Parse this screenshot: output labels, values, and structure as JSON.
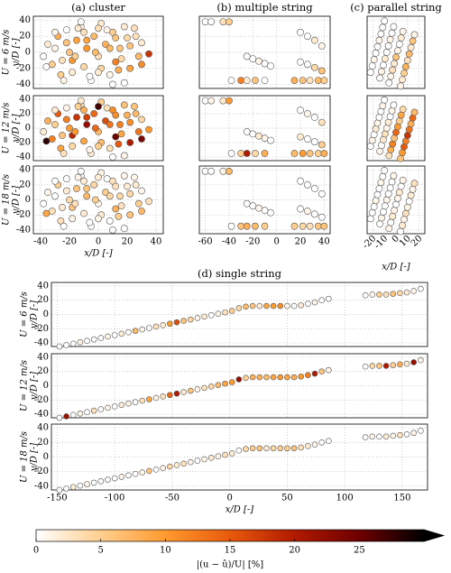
{
  "chart_data": [
    {
      "type": "scatter",
      "title": "(a) cluster",
      "xlabel": "x/D [-]",
      "ylabel": "y/D [-]",
      "xlim": [
        -45,
        45
      ],
      "xticks": [
        -40,
        -20,
        0,
        20,
        40
      ],
      "ylim": [
        -45,
        45
      ],
      "yticks": [
        -40,
        -20,
        0,
        20,
        40
      ],
      "grid": true,
      "x": [
        -38,
        -35,
        -32,
        -30,
        -28,
        -25,
        -22,
        -20,
        -18,
        -15,
        -12,
        -10,
        -8,
        -5,
        -3,
        0,
        2,
        5,
        8,
        10,
        12,
        15,
        18,
        20,
        22,
        25,
        28,
        30,
        35,
        -36,
        -30,
        -26,
        -22,
        -18,
        -14,
        -10,
        -6,
        -2,
        2,
        6,
        10,
        14,
        18,
        22,
        26,
        30,
        -24,
        -16,
        -8,
        0,
        8,
        16,
        -12,
        0,
        12
      ],
      "y": [
        -5,
        10,
        -15,
        5,
        20,
        -10,
        28,
        0,
        -25,
        15,
        32,
        -18,
        5,
        -35,
        20,
        -5,
        36,
        10,
        -28,
        25,
        -12,
        5,
        -38,
        18,
        -20,
        30,
        -5,
        12,
        -2,
        -18,
        25,
        -28,
        12,
        -10,
        30,
        25,
        -30,
        0,
        -20,
        28,
        -40,
        -22,
        32,
        8,
        20,
        -15,
        -35,
        -5,
        15,
        -25,
        5,
        -8,
        38,
        30,
        18
      ],
      "series": [
        {
          "name": "U = 6 m/s",
          "values": [
            0,
            2,
            5,
            1,
            8,
            3,
            0,
            6,
            2,
            9,
            1,
            4,
            10,
            0,
            7,
            3,
            2,
            8,
            1,
            5,
            12,
            6,
            0,
            4,
            9,
            3,
            7,
            2,
            18,
            0,
            1,
            5,
            6,
            10,
            2,
            3,
            0,
            7,
            4,
            1,
            0,
            8,
            2,
            6,
            3,
            11,
            1,
            5,
            9,
            2,
            7,
            4,
            0,
            3,
            6
          ]
        },
        {
          "name": "U = 12 m/s",
          "values": [
            2,
            8,
            12,
            5,
            15,
            6,
            1,
            10,
            4,
            18,
            3,
            9,
            22,
            2,
            14,
            7,
            5,
            16,
            3,
            11,
            25,
            12,
            1,
            8,
            20,
            6,
            13,
            4,
            10,
            28,
            2,
            9,
            12,
            19,
            5,
            8,
            1,
            14,
            7,
            3,
            0,
            15,
            6,
            11,
            7,
            24,
            3,
            10,
            17,
            5,
            13,
            9,
            2,
            27,
            11
          ]
        },
        {
          "name": "U = 18 m/s",
          "values": [
            0,
            1,
            3,
            0,
            5,
            2,
            0,
            4,
            1,
            6,
            0,
            2,
            7,
            0,
            4,
            1,
            1,
            5,
            0,
            3,
            8,
            4,
            0,
            2,
            6,
            1,
            5,
            1,
            3,
            9,
            0,
            3,
            2,
            6,
            1,
            2,
            0,
            5,
            2,
            0,
            0,
            5,
            1,
            4,
            2,
            7,
            0,
            3,
            6,
            1,
            4,
            3,
            0,
            2,
            3
          ]
        }
      ]
    },
    {
      "type": "scatter",
      "title": "(b) multiple string",
      "xlim": [
        -65,
        45
      ],
      "xticks": [
        -60,
        -40,
        -20,
        0,
        20,
        40
      ],
      "ylim": [
        -45,
        45
      ],
      "yticks": [
        -40,
        -20,
        0,
        20,
        40
      ],
      "grid": true,
      "x": [
        -60,
        -55,
        -45,
        -40,
        -25,
        -20,
        -15,
        -10,
        -5,
        -38,
        -30,
        -25,
        -18,
        -10,
        20,
        26,
        32,
        38,
        20,
        26,
        32,
        38,
        15,
        22,
        28,
        35,
        40
      ],
      "y": [
        38,
        38,
        38,
        38,
        -5,
        -8,
        -11,
        -14,
        -17,
        -35,
        -35,
        -35,
        -35,
        -35,
        25,
        20,
        15,
        8,
        -12,
        -15,
        -19,
        -23,
        -35,
        -35,
        -35,
        -35,
        -35
      ],
      "series": [
        {
          "name": "U = 6 m/s",
          "values": [
            0,
            0,
            3,
            5,
            0,
            0,
            1,
            0,
            0,
            0,
            12,
            2,
            6,
            0,
            0,
            0,
            2,
            1,
            0,
            0,
            4,
            6,
            8,
            6,
            3,
            7,
            5
          ]
        },
        {
          "name": "U = 12 m/s",
          "values": [
            0,
            1,
            2,
            10,
            0,
            0,
            2,
            1,
            0,
            0,
            5,
            20,
            4,
            8,
            0,
            1,
            0,
            3,
            2,
            0,
            0,
            5,
            7,
            10,
            6,
            5,
            8
          ]
        },
        {
          "name": "U = 18 m/s",
          "values": [
            0,
            0,
            1,
            7,
            0,
            0,
            1,
            0,
            0,
            0,
            6,
            8,
            7,
            5,
            0,
            0,
            0,
            0,
            0,
            1,
            0,
            0,
            5,
            4,
            3,
            6,
            6
          ]
        }
      ]
    },
    {
      "type": "scatter",
      "title": "(c) parallel string",
      "xlabel": "x/D [-]",
      "xtick_rotation": -45,
      "xlim": [
        -25,
        25
      ],
      "xticks": [
        -20,
        -10,
        0,
        10,
        20
      ],
      "ylim": [
        -45,
        45
      ],
      "yticks": [
        -40,
        -20,
        0,
        20,
        40
      ],
      "grid": true,
      "x": [
        -22,
        -20.5,
        -19,
        -17.5,
        -16,
        -14.5,
        -13,
        -11.5,
        -10,
        -14,
        -12.5,
        -11,
        -9.5,
        -8,
        -6.5,
        -5,
        -3.5,
        -2,
        -6,
        -4.5,
        -3,
        -1.5,
        0,
        1.5,
        3,
        4.5,
        6,
        4,
        5.5,
        7,
        8.5,
        10,
        11.5,
        13,
        14.5,
        16
      ],
      "y": [
        -25,
        -17,
        -9,
        -1,
        7,
        15,
        23,
        31,
        39,
        -32,
        -24,
        -16,
        -8,
        0,
        8,
        16,
        24,
        32,
        -38,
        -30,
        -22,
        -14,
        -6,
        2,
        10,
        18,
        26,
        -42,
        -34,
        -26,
        -18,
        -10,
        -2,
        6,
        14,
        22
      ],
      "series": [
        {
          "name": "U = 6 m/s",
          "values": [
            0,
            0,
            1,
            0,
            0,
            1,
            0,
            0,
            0,
            0,
            1,
            0,
            2,
            0,
            0,
            1,
            0,
            0,
            0,
            1,
            3,
            2,
            6,
            1,
            0,
            2,
            1,
            1,
            2,
            5,
            8,
            3,
            7,
            2,
            6,
            1
          ]
        },
        {
          "name": "U = 12 m/s",
          "values": [
            0,
            1,
            0,
            2,
            1,
            0,
            0,
            1,
            0,
            1,
            0,
            2,
            3,
            1,
            2,
            0,
            1,
            0,
            3,
            8,
            12,
            6,
            14,
            10,
            5,
            9,
            4,
            6,
            10,
            15,
            12,
            18,
            13,
            8,
            14,
            7
          ]
        },
        {
          "name": "U = 18 m/s",
          "values": [
            0,
            0,
            0,
            1,
            0,
            0,
            1,
            0,
            0,
            0,
            1,
            0,
            0,
            1,
            0,
            0,
            0,
            1,
            1,
            0,
            2,
            1,
            0,
            1,
            2,
            0,
            1,
            0,
            2,
            1,
            3,
            1,
            0,
            2,
            1,
            3
          ]
        }
      ]
    },
    {
      "type": "scatter",
      "title": "(d) single string",
      "xlabel": "x/D [-]",
      "ylabel": "y/D [-]",
      "xlim": [
        -155,
        172
      ],
      "xticks": [
        -150,
        -100,
        -50,
        0,
        50,
        100,
        150
      ],
      "ylim": [
        -45,
        45
      ],
      "yticks": [
        -40,
        -20,
        0,
        20,
        40
      ],
      "grid": true,
      "x": [
        -148,
        -142,
        -136,
        -130,
        -124,
        -118,
        -112,
        -106,
        -100,
        -94,
        -88,
        -82,
        -76,
        -70,
        -64,
        -58,
        -52,
        -46,
        -40,
        -34,
        -28,
        -22,
        -16,
        -10,
        -4,
        2,
        8,
        14,
        20,
        26,
        32,
        38,
        44,
        50,
        56,
        62,
        68,
        74,
        80,
        86,
        118,
        124,
        130,
        136,
        142,
        148,
        154,
        160,
        166
      ],
      "y": [
        -45,
        -43,
        -41,
        -39,
        -37,
        -35,
        -33,
        -31,
        -29,
        -27,
        -25,
        -23,
        -21,
        -19,
        -17,
        -15,
        -13,
        -11,
        -9,
        -7,
        -5,
        -3,
        -1,
        1,
        3,
        5,
        9,
        11,
        12,
        12,
        12,
        12,
        12,
        12,
        12,
        13,
        15,
        17,
        20,
        22,
        27,
        28,
        28,
        28,
        29,
        30,
        31,
        33,
        36
      ],
      "series": [
        {
          "name": "U = 6 m/s",
          "values": [
            0,
            0,
            0,
            1,
            0,
            0,
            0,
            1,
            0,
            2,
            0,
            7,
            1,
            0,
            3,
            2,
            10,
            16,
            6,
            4,
            1,
            2,
            0,
            1,
            3,
            5,
            4,
            7,
            6,
            2,
            9,
            10,
            11,
            1,
            0,
            2,
            0,
            1,
            0,
            0,
            0,
            1,
            5,
            3,
            6,
            4,
            2,
            1,
            0
          ]
        },
        {
          "name": "U = 12 m/s",
          "values": [
            0,
            22,
            0,
            1,
            0,
            3,
            0,
            1,
            0,
            2,
            1,
            0,
            3,
            9,
            1,
            3,
            14,
            20,
            2,
            6,
            1,
            3,
            4,
            7,
            9,
            10,
            22,
            5,
            8,
            8,
            7,
            9,
            10,
            9,
            8,
            10,
            12,
            20,
            6,
            1,
            0,
            4,
            6,
            20,
            5,
            8,
            2,
            22,
            1
          ]
        },
        {
          "name": "U = 18 m/s",
          "values": [
            0,
            0,
            2,
            0,
            1,
            0,
            0,
            0,
            0,
            1,
            0,
            0,
            1,
            6,
            0,
            1,
            4,
            2,
            3,
            1,
            0,
            1,
            2,
            1,
            3,
            2,
            0,
            4,
            5,
            6,
            2,
            4,
            5,
            5,
            6,
            3,
            2,
            1,
            0,
            0,
            0,
            1,
            0,
            2,
            1,
            3,
            0,
            1,
            0
          ]
        }
      ]
    }
  ],
  "colorbar": {
    "label": "|(u − û)/U| [%]",
    "lim": [
      0,
      30
    ],
    "ticks": [
      0,
      5,
      10,
      15,
      20,
      25
    ],
    "extend": "max",
    "colors": [
      "#ffffff",
      "#ffcf8f",
      "#ff9a2e",
      "#e85a0c",
      "#b11a00",
      "#6e0000",
      "#000000"
    ]
  }
}
